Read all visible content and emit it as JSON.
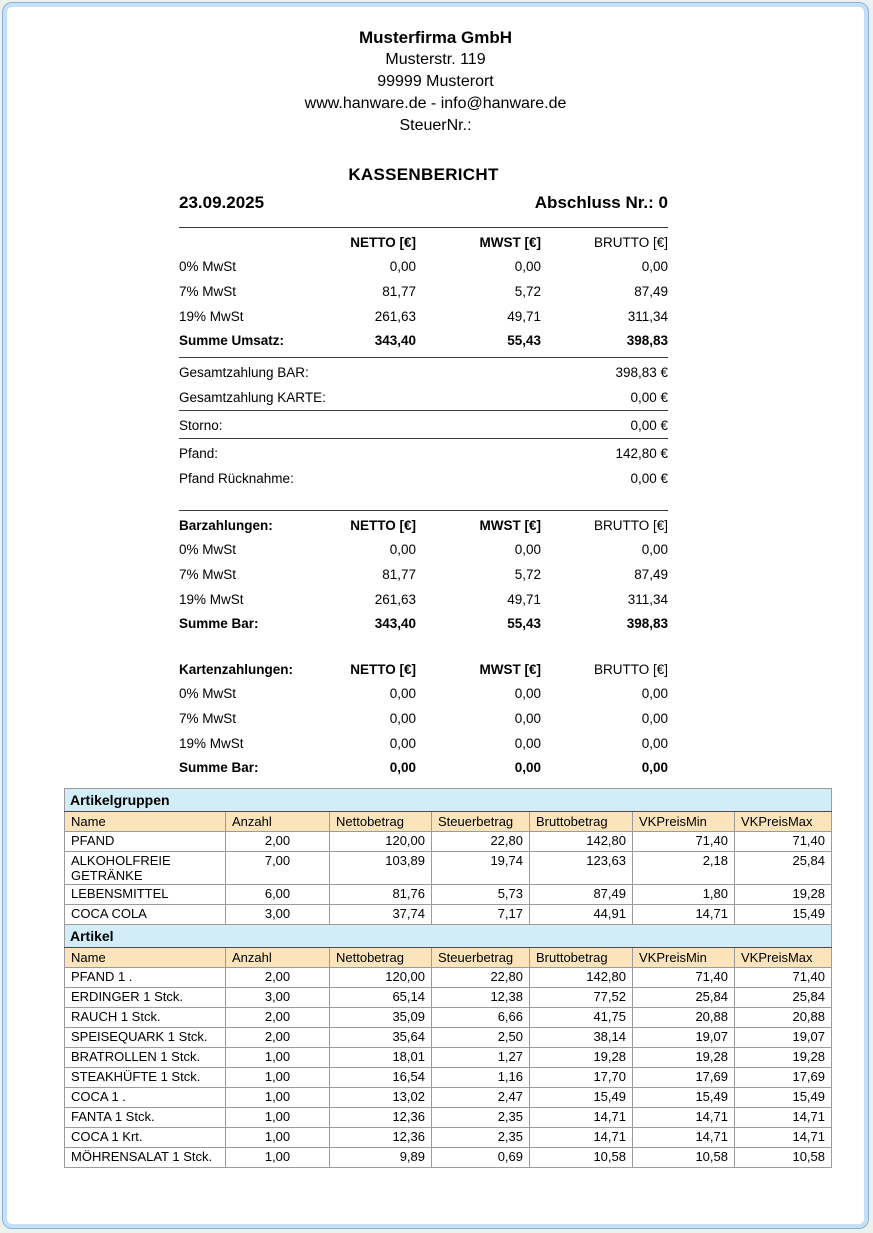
{
  "colors": {
    "frame_band": "#c5e0f5",
    "frame_line": "#86b3d9",
    "section_header_bg": "#d2edf8",
    "column_header_bg": "#fbe4bb",
    "grid_line": "#9b9b9b"
  },
  "header": {
    "company_name": "Musterfirma GmbH",
    "street": "Musterstr. 119",
    "city": "99999 Musterort",
    "web": "www.hanware.de - info@hanware.de",
    "tax_no": "SteuerNr.:",
    "title": "KASSENBERICHT",
    "date": "23.09.2025",
    "closing_no": "Abschluss Nr.: 0"
  },
  "summary_blocks": [
    {
      "label": "",
      "top_rule": true,
      "col_headers": [
        "NETTO [€]",
        "MWST [€]",
        "BRUTTO [€]"
      ],
      "rows": [
        {
          "label": "0% MwSt",
          "values": [
            "0,00",
            "0,00",
            "0,00"
          ]
        },
        {
          "label": "7% MwSt",
          "values": [
            "81,77",
            "5,72",
            "87,49"
          ]
        },
        {
          "label": "19% MwSt",
          "values": [
            "261,63",
            "49,71",
            "311,34"
          ]
        }
      ],
      "total": {
        "label": "Summe Umsatz:",
        "values": [
          "343,40",
          "55,43",
          "398,83"
        ]
      }
    },
    {
      "label": "Barzahlungen:",
      "top_rule": true,
      "col_headers": [
        "NETTO [€]",
        "MWST [€]",
        "BRUTTO [€]"
      ],
      "rows": [
        {
          "label": "0% MwSt",
          "values": [
            "0,00",
            "0,00",
            "0,00"
          ]
        },
        {
          "label": "7% MwSt",
          "values": [
            "81,77",
            "5,72",
            "87,49"
          ]
        },
        {
          "label": "19% MwSt",
          "values": [
            "261,63",
            "49,71",
            "311,34"
          ]
        }
      ],
      "total": {
        "label": "Summe Bar:",
        "values": [
          "343,40",
          "55,43",
          "398,83"
        ]
      }
    },
    {
      "label": "Kartenzahlungen:",
      "top_rule": false,
      "col_headers": [
        "NETTO [€]",
        "MWST [€]",
        "BRUTTO [€]"
      ],
      "rows": [
        {
          "label": "0% MwSt",
          "values": [
            "0,00",
            "0,00",
            "0,00"
          ]
        },
        {
          "label": "7% MwSt",
          "values": [
            "0,00",
            "0,00",
            "0,00"
          ]
        },
        {
          "label": "19% MwSt",
          "values": [
            "0,00",
            "0,00",
            "0,00"
          ]
        }
      ],
      "total": {
        "label": "Summe Bar:",
        "values": [
          "0,00",
          "0,00",
          "0,00"
        ]
      }
    }
  ],
  "payment_groups": [
    {
      "name": "total-payments",
      "rows": [
        {
          "label": "Gesamtzahlung BAR:",
          "value": "398,83 €"
        },
        {
          "label": "Gesamtzahlung KARTE:",
          "value": "0,00 €"
        }
      ]
    },
    {
      "name": "storno",
      "rows": [
        {
          "label": "Storno:",
          "value": "0,00 €"
        }
      ]
    },
    {
      "name": "pfand",
      "rows": [
        {
          "label": "Pfand:",
          "value": "142,80 €"
        },
        {
          "label": "Pfand Rücknahme:",
          "value": "0,00 €"
        }
      ]
    }
  ],
  "article_tables": [
    {
      "title": "Artikelgruppen",
      "headers": [
        "Name",
        "Anzahl",
        "Nettobetrag",
        "Steuerbetrag",
        "Bruttobetrag",
        "VKPreisMin",
        "VKPreisMax"
      ],
      "rows": [
        [
          "PFAND",
          "2,00",
          "120,00",
          "22,80",
          "142,80",
          "71,40",
          "71,40"
        ],
        [
          "ALKOHOLFREIE GETRÄNKE",
          "7,00",
          "103,89",
          "19,74",
          "123,63",
          "2,18",
          "25,84"
        ],
        [
          "LEBENSMITTEL",
          "6,00",
          "81,76",
          "5,73",
          "87,49",
          "1,80",
          "19,28"
        ],
        [
          "COCA COLA",
          "3,00",
          "37,74",
          "7,17",
          "44,91",
          "14,71",
          "15,49"
        ]
      ]
    },
    {
      "title": "Artikel",
      "headers": [
        "Name",
        "Anzahl",
        "Nettobetrag",
        "Steuerbetrag",
        "Bruttobetrag",
        "VKPreisMin",
        "VKPreisMax"
      ],
      "rows": [
        [
          "PFAND 1 .",
          "2,00",
          "120,00",
          "22,80",
          "142,80",
          "71,40",
          "71,40"
        ],
        [
          "ERDINGER 1 Stck.",
          "3,00",
          "65,14",
          "12,38",
          "77,52",
          "25,84",
          "25,84"
        ],
        [
          "RAUCH 1 Stck.",
          "2,00",
          "35,09",
          "6,66",
          "41,75",
          "20,88",
          "20,88"
        ],
        [
          "SPEISEQUARK 1 Stck.",
          "2,00",
          "35,64",
          "2,50",
          "38,14",
          "19,07",
          "19,07"
        ],
        [
          "BRATROLLEN 1 Stck.",
          "1,00",
          "18,01",
          "1,27",
          "19,28",
          "19,28",
          "19,28"
        ],
        [
          "STEAKHÜFTE 1 Stck.",
          "1,00",
          "16,54",
          "1,16",
          "17,70",
          "17,69",
          "17,69"
        ],
        [
          "COCA 1 .",
          "1,00",
          "13,02",
          "2,47",
          "15,49",
          "15,49",
          "15,49"
        ],
        [
          "FANTA 1 Stck.",
          "1,00",
          "12,36",
          "2,35",
          "14,71",
          "14,71",
          "14,71"
        ],
        [
          "COCA 1 Krt.",
          "1,00",
          "12,36",
          "2,35",
          "14,71",
          "14,71",
          "14,71"
        ],
        [
          "MÖHRENSALAT 1 Stck.",
          "1,00",
          "9,89",
          "0,69",
          "10,58",
          "10,58",
          "10,58"
        ]
      ]
    }
  ]
}
